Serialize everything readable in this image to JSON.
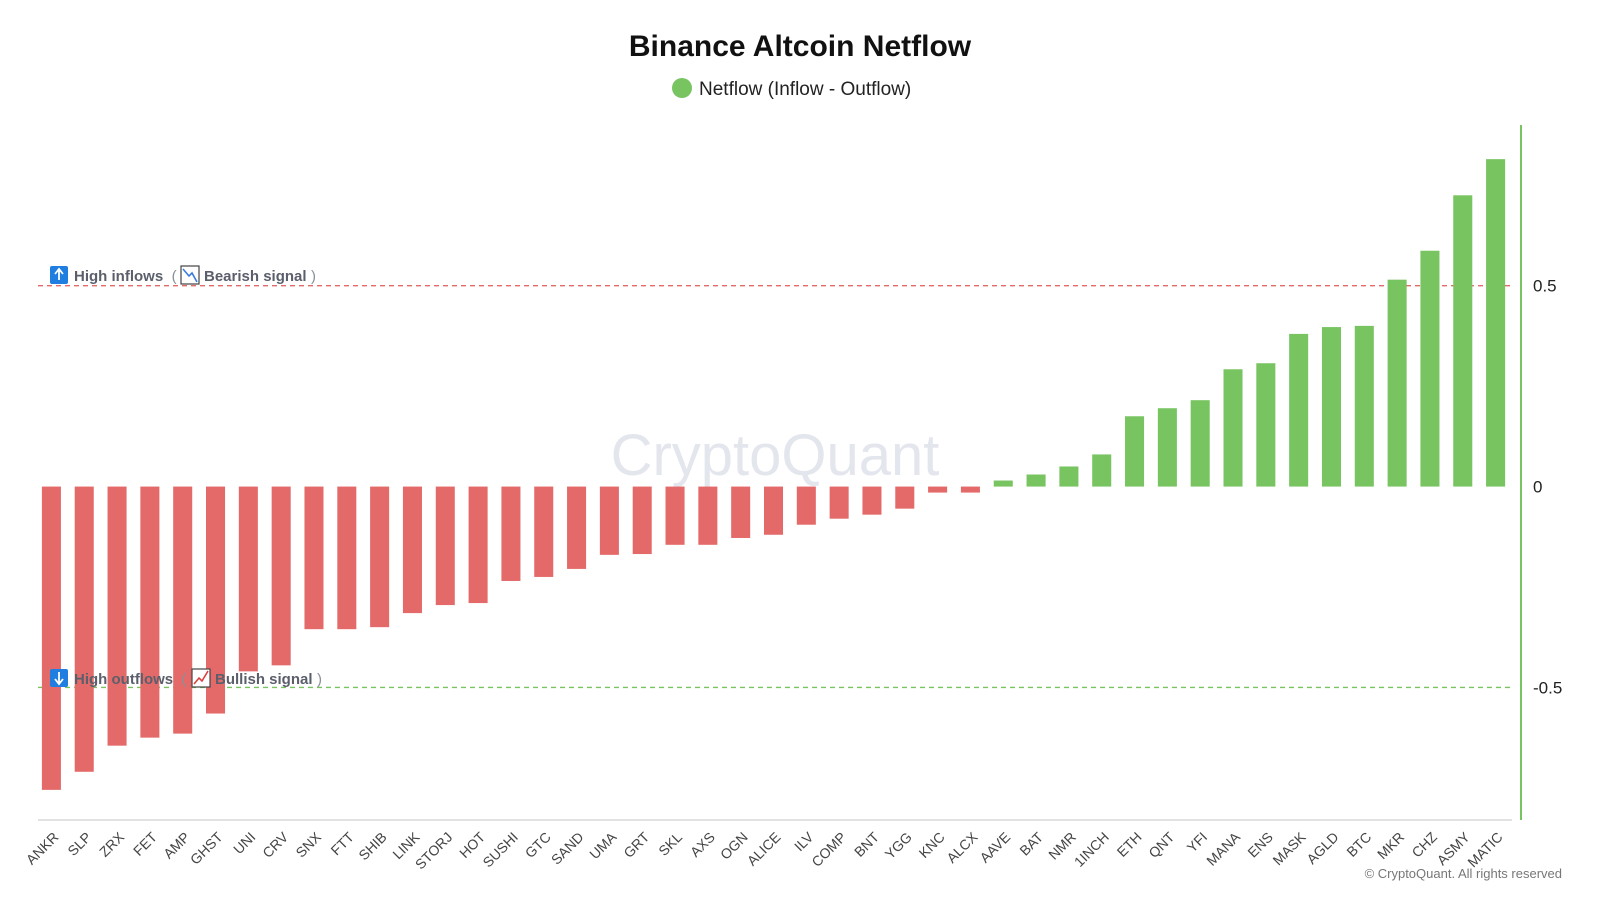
{
  "chart_data": {
    "type": "bar",
    "title": "Binance Altcoin Netflow",
    "xlabel": "",
    "ylabel": "",
    "ylim": [
      -0.83,
      0.9
    ],
    "yticks": [
      0.5,
      0,
      -0.5
    ],
    "ytick_labels": [
      "0.5",
      "0",
      "-0.5"
    ],
    "legend": {
      "label": "Netflow (Inflow - Outflow)",
      "color": "#77c461",
      "placement": "top-center"
    },
    "positive_color": "#77c461",
    "negative_color": "#e46a6a",
    "categories": [
      "ANKR",
      "SLP",
      "ZRX",
      "FET",
      "AMP",
      "GHST",
      "UNI",
      "CRV",
      "SNX",
      "FTT",
      "SHIB",
      "LINK",
      "STORJ",
      "HOT",
      "SUSHI",
      "GTC",
      "SAND",
      "UMA",
      "GRT",
      "SKL",
      "AXS",
      "OGN",
      "ALICE",
      "ILV",
      "COMP",
      "BNT",
      "YGG",
      "KNC",
      "ALCX",
      "AAVE",
      "BAT",
      "NMR",
      "1INCH",
      "ETH",
      "QNT",
      "YFI",
      "MANA",
      "ENS",
      "MASK",
      "AGLD",
      "BTC",
      "MKR",
      "CHZ",
      "ASMY",
      "MATIC"
    ],
    "series": [
      {
        "name": "Netflow (Inflow - Outflow)",
        "values": [
          -0.755,
          -0.71,
          -0.645,
          -0.625,
          -0.615,
          -0.565,
          -0.46,
          -0.445,
          -0.355,
          -0.355,
          -0.35,
          -0.315,
          -0.295,
          -0.29,
          -0.235,
          -0.225,
          -0.205,
          -0.17,
          -0.168,
          -0.145,
          -0.145,
          -0.128,
          -0.12,
          -0.095,
          -0.08,
          -0.07,
          -0.055,
          -0.015,
          -0.015,
          0.015,
          0.03,
          0.05,
          0.08,
          0.175,
          0.195,
          0.215,
          0.292,
          0.307,
          0.38,
          0.397,
          0.4,
          0.515,
          0.587,
          0.725,
          0.815
        ]
      }
    ],
    "reference_lines": [
      {
        "value": 0.5,
        "color": "#e46a6a",
        "label": "High inflows",
        "paren_open": "(",
        "signal": "Bearish signal",
        "paren_close": ")",
        "arrow_icon": "up-arrow-icon",
        "chart_icon": "chart-decreasing-icon"
      },
      {
        "value": -0.5,
        "color": "#77c461",
        "label": "High outflows",
        "paren_open": "(",
        "signal": "Bullish signal",
        "paren_close": ")",
        "arrow_icon": "down-arrow-icon",
        "chart_icon": "chart-increasing-icon"
      }
    ],
    "watermark": "CryptoQuant",
    "copyright": "© CryptoQuant. All rights reserved"
  }
}
